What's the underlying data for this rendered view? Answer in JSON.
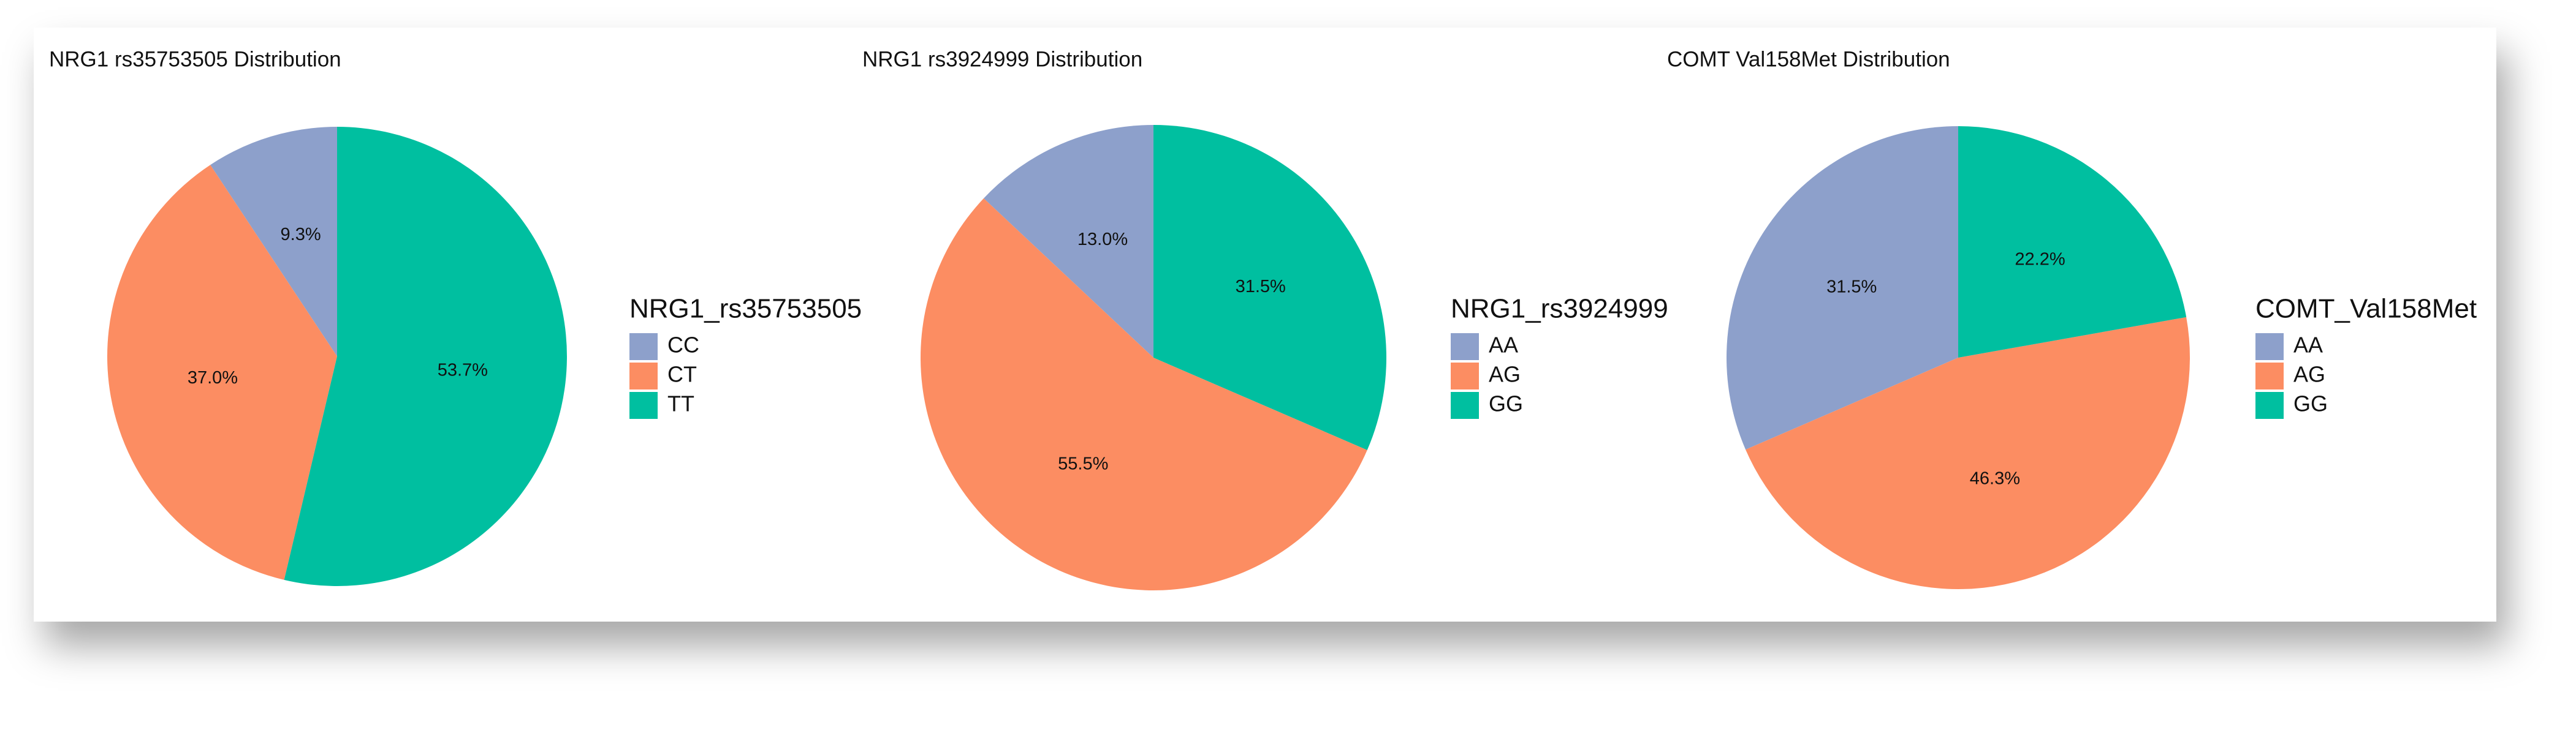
{
  "chart_data": [
    {
      "type": "pie",
      "title": "NRG1 rs35753505 Distribution",
      "legend_title": "NRG1_rs35753505",
      "categories": [
        "CC",
        "CT",
        "TT"
      ],
      "values": [
        9.3,
        37.0,
        53.7
      ],
      "value_labels": [
        "9.3%",
        "37.0%",
        "53.7%"
      ],
      "colors": [
        "#8DA0CB",
        "#FC8D62",
        "#00BFA0"
      ]
    },
    {
      "type": "pie",
      "title": "NRG1 rs3924999 Distribution",
      "legend_title": "NRG1_rs3924999",
      "categories": [
        "AA",
        "AG",
        "GG"
      ],
      "values": [
        13.0,
        55.5,
        31.5
      ],
      "value_labels": [
        "13.0%",
        "55.5%",
        "31.5%"
      ],
      "colors": [
        "#8DA0CB",
        "#FC8D62",
        "#00BFA0"
      ]
    },
    {
      "type": "pie",
      "title": "COMT Val158Met Distribution",
      "legend_title": "COMT_Val158Met",
      "categories": [
        "AA",
        "AG",
        "GG"
      ],
      "values": [
        31.5,
        46.3,
        22.2
      ],
      "value_labels": [
        "31.5%",
        "46.3%",
        "22.2%"
      ],
      "colors": [
        "#8DA0CB",
        "#FC8D62",
        "#00BFA0"
      ]
    }
  ]
}
